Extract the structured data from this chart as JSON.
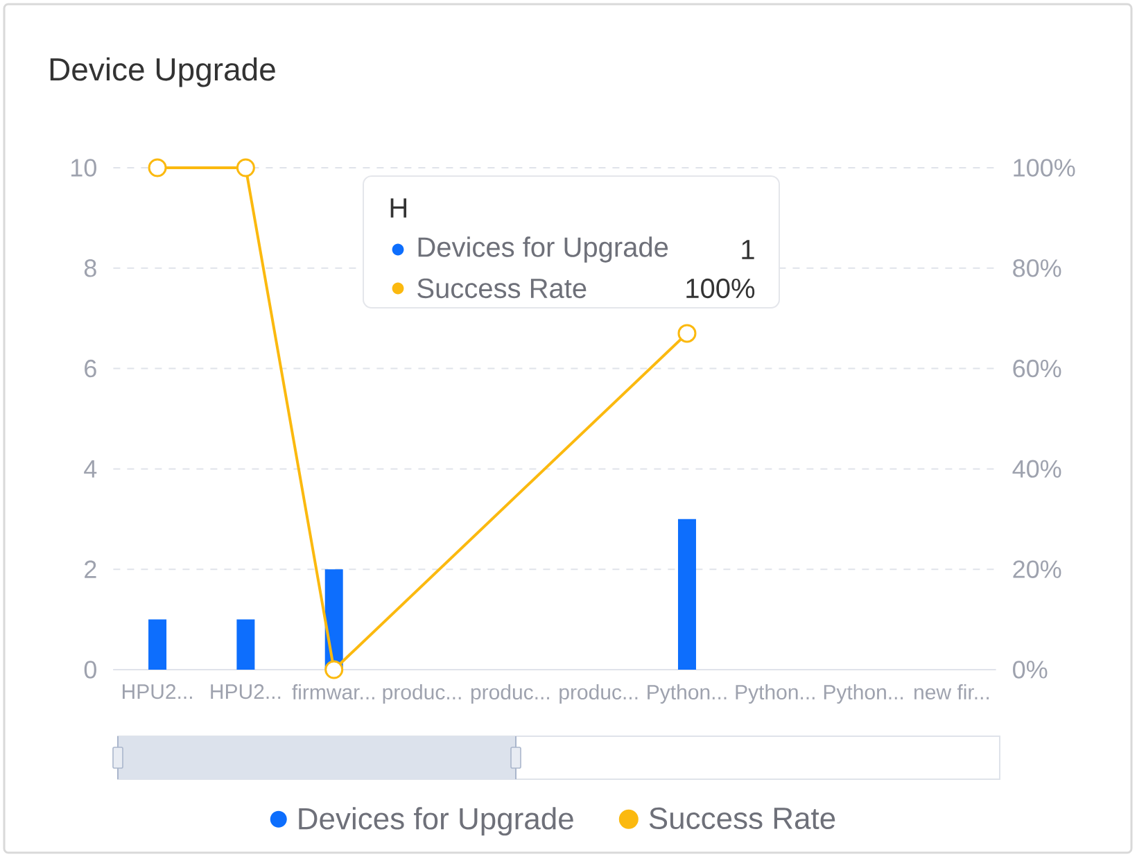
{
  "chart_data": {
    "type": "bar",
    "title": "Device Upgrade",
    "categories": [
      "HPU2...",
      "HPU2...",
      "firmwar...",
      "produc...",
      "produc...",
      "produc...",
      "Python...",
      "Python...",
      "Python...",
      "new fir..."
    ],
    "series": [
      {
        "name": "Devices for Upgrade",
        "color": "#0d6efd",
        "values": [
          1,
          1,
          2,
          0,
          0,
          0,
          3,
          0,
          0,
          0
        ]
      },
      {
        "name": "Success Rate",
        "type": "line",
        "axis": "y2",
        "color": "#fbb90f",
        "values": [
          100,
          100,
          0,
          null,
          null,
          null,
          67,
          null,
          null,
          null
        ]
      }
    ],
    "ylim": [
      0,
      10
    ],
    "yticks": [
      0,
      2,
      4,
      6,
      8,
      10
    ],
    "y2lim": [
      0,
      100
    ],
    "y2ticks": [
      {
        "value": 0,
        "label": "0%"
      },
      {
        "value": 20,
        "label": "20%"
      },
      {
        "value": 40,
        "label": "40%"
      },
      {
        "value": 60,
        "label": "60%"
      },
      {
        "value": 80,
        "label": "80%"
      },
      {
        "value": 100,
        "label": "100%"
      }
    ],
    "grid": "y",
    "legend": "bottom",
    "marker": "circle",
    "annotations": [
      "H",
      "Devices for Upgrade",
      "1",
      "Success Rate",
      "100%"
    ]
  }
}
